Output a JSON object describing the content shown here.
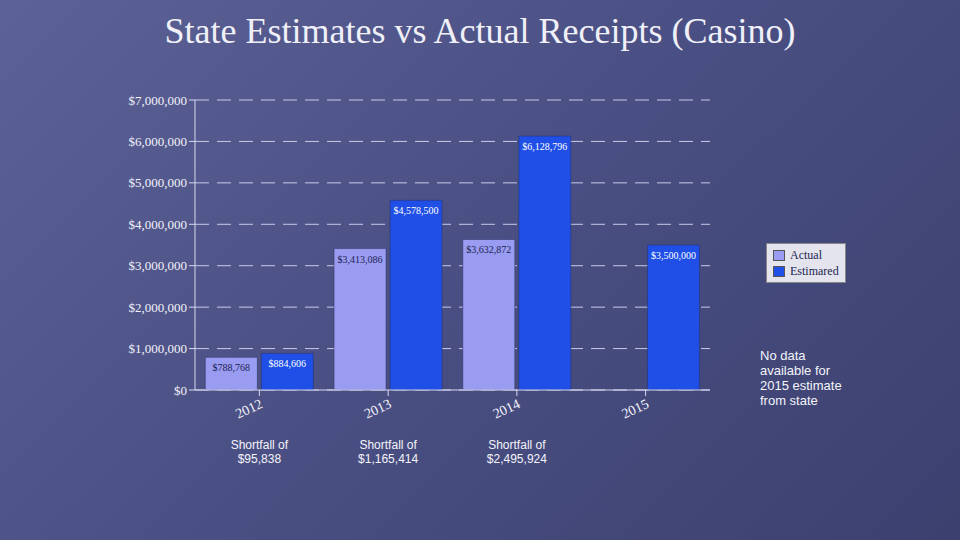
{
  "chart_data": {
    "type": "bar",
    "title": "State Estimates vs Actual Receipts (Casino)",
    "categories": [
      "2012",
      "2013",
      "2014",
      "2015"
    ],
    "series": [
      {
        "name": "Actual",
        "color": "#9a9cf2",
        "values": [
          788768,
          3413086,
          3632872,
          null
        ],
        "value_labels": [
          "$788,768",
          "$3,413,086",
          "$3,632,872",
          null
        ]
      },
      {
        "name": "Estimared",
        "color": "#1f4fe6",
        "values": [
          884606,
          4578500,
          6128796,
          3500000
        ],
        "value_labels": [
          "$884,606",
          "$4,578,500",
          "$6,128,796",
          "$3,500,000"
        ]
      }
    ],
    "ylim": [
      0,
      7000000
    ],
    "yticks": [
      {
        "value": 0,
        "label": "$0"
      },
      {
        "value": 1000000,
        "label": "$1,000,000"
      },
      {
        "value": 2000000,
        "label": "$2,000,000"
      },
      {
        "value": 3000000,
        "label": "$3,000,000"
      },
      {
        "value": 4000000,
        "label": "$4,000,000"
      },
      {
        "value": 5000000,
        "label": "$5,000,000"
      },
      {
        "value": 6000000,
        "label": "$6,000,000"
      },
      {
        "value": 7000000,
        "label": "$7,000,000"
      }
    ],
    "grid": true,
    "legend": "right",
    "data_labels": true,
    "annotations": [
      {
        "category": "2012",
        "text": "Shortfall of $95,838"
      },
      {
        "category": "2013",
        "text": "Shortfall of $1,165,414"
      },
      {
        "category": "2014",
        "text": "Shortfall of $2,495,924"
      },
      {
        "text": "No data available for 2015 estimate from state"
      }
    ]
  }
}
